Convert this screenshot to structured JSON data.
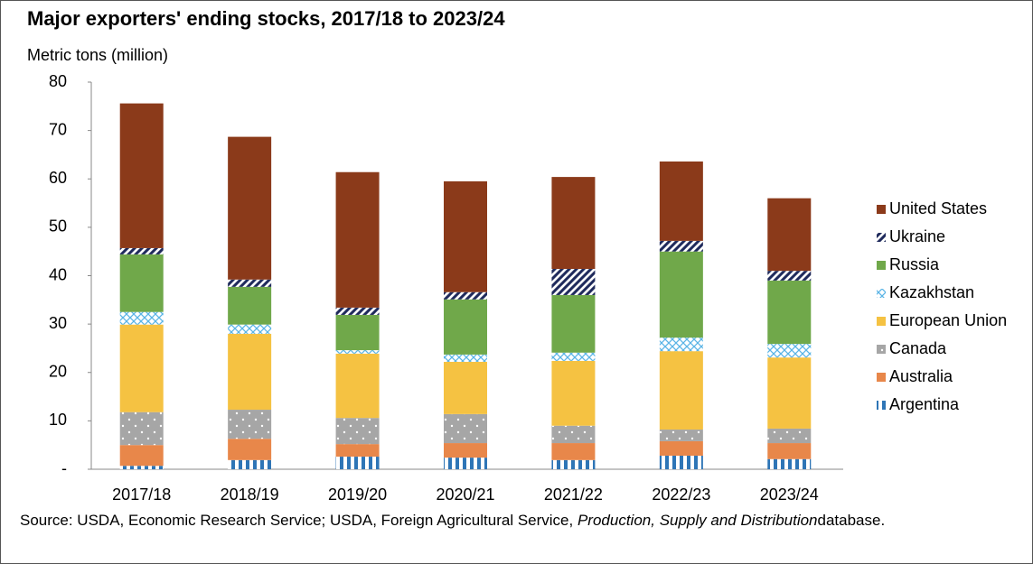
{
  "chart_data": {
    "type": "stacked_bar",
    "title": "Major exporters' ending stocks, 2017/18 to 2023/24",
    "y_axis_label": "Metric tons (million)",
    "categories": [
      "2017/18",
      "2018/19",
      "2019/20",
      "2020/21",
      "2021/22",
      "2022/23",
      "2023/24"
    ],
    "series": [
      {
        "name": "Argentina",
        "color": "#2e75b6",
        "pattern": "vertical",
        "values": [
          0.7,
          1.9,
          2.6,
          2.4,
          1.9,
          2.8,
          2.1
        ]
      },
      {
        "name": "Australia",
        "color": "#e8874a",
        "values": [
          4.3,
          4.4,
          2.6,
          3.0,
          3.5,
          3.0,
          3.3
        ]
      },
      {
        "name": "Canada",
        "color": "#a6a6a6",
        "pattern": "dots",
        "values": [
          6.8,
          6.0,
          5.4,
          6.0,
          3.6,
          2.4,
          3.0
        ]
      },
      {
        "name": "European Union",
        "color": "#f5c242",
        "values": [
          18.1,
          15.7,
          13.3,
          10.8,
          13.4,
          16.2,
          14.7
        ]
      },
      {
        "name": "Kazakhstan",
        "color": "#5ab4e6",
        "pattern": "cross",
        "values": [
          2.6,
          1.9,
          0.7,
          1.5,
          1.7,
          2.8,
          2.8
        ]
      },
      {
        "name": "Russia",
        "color": "#70a84a",
        "values": [
          11.9,
          7.8,
          7.3,
          11.4,
          11.9,
          17.8,
          13.1
        ]
      },
      {
        "name": "Ukraine",
        "color": "#1f2a5c",
        "pattern": "diagonal",
        "values": [
          1.3,
          1.5,
          1.5,
          1.5,
          5.4,
          2.2,
          2.0
        ]
      },
      {
        "name": "United States",
        "color": "#8b3a1a",
        "values": [
          29.9,
          29.5,
          28.0,
          22.9,
          19.0,
          16.4,
          15.0
        ]
      }
    ],
    "ylim": [
      0,
      80
    ],
    "yticks": [
      {
        "value": 0,
        "label": "-"
      },
      10,
      20,
      30,
      40,
      50,
      60,
      70,
      80
    ],
    "legend": "right",
    "source": [
      "Source: USDA, Economic Research Service; USDA, Foreign Agricultural Service,",
      "Production, Supply and Distribution",
      "database."
    ]
  }
}
